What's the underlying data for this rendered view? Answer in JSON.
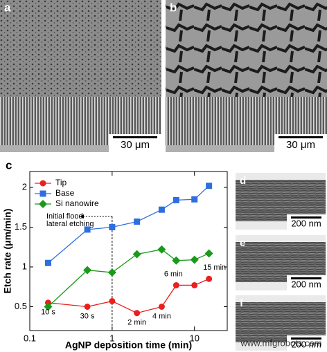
{
  "chart_data": {
    "type": "line",
    "panel_label": "c",
    "xlabel": "AgNP deposition time (min)",
    "ylabel": "Etch rate (μm/min)",
    "x": [
      0.167,
      0.5,
      1,
      2,
      4,
      6,
      10,
      15
    ],
    "xscale": "log",
    "xlim": [
      0.1,
      25
    ],
    "xticks": [
      0.1,
      1,
      10
    ],
    "ylim": [
      0.2,
      2.2
    ],
    "yticks": [
      0.5,
      1,
      1.5,
      2
    ],
    "legend": "upper left",
    "series": [
      {
        "name": "Tip",
        "color": "#e8201e",
        "marker": "circle",
        "values": [
          0.55,
          0.5,
          0.57,
          0.42,
          0.5,
          0.77,
          0.77,
          0.85
        ]
      },
      {
        "name": "Base",
        "color": "#2d6fe0",
        "marker": "square",
        "values": [
          1.05,
          1.47,
          1.5,
          1.57,
          1.72,
          1.84,
          1.85,
          2.02
        ]
      },
      {
        "name": "Si nanowire",
        "color": "#1a9a1a",
        "marker": "diamond",
        "values": [
          0.5,
          0.96,
          0.93,
          1.16,
          1.22,
          1.08,
          1.09,
          1.17
        ]
      }
    ],
    "point_labels": [
      "10 s",
      "30 s",
      null,
      "2 min",
      "4 min",
      "6 min",
      null,
      "15 min"
    ],
    "vline": 1,
    "annotation": [
      "Initial flood",
      "lateral etching"
    ]
  },
  "images": [
    {
      "label": "a",
      "scale_bar": "30 μm"
    },
    {
      "label": "b",
      "scale_bar": "30 μm"
    },
    {
      "label": "d",
      "scale_bar": "200 nm"
    },
    {
      "label": "e",
      "scale_bar": "200 nm"
    },
    {
      "label": "f",
      "scale_bar": "200 nm"
    }
  ],
  "watermark": "www.mfgrobots.com"
}
